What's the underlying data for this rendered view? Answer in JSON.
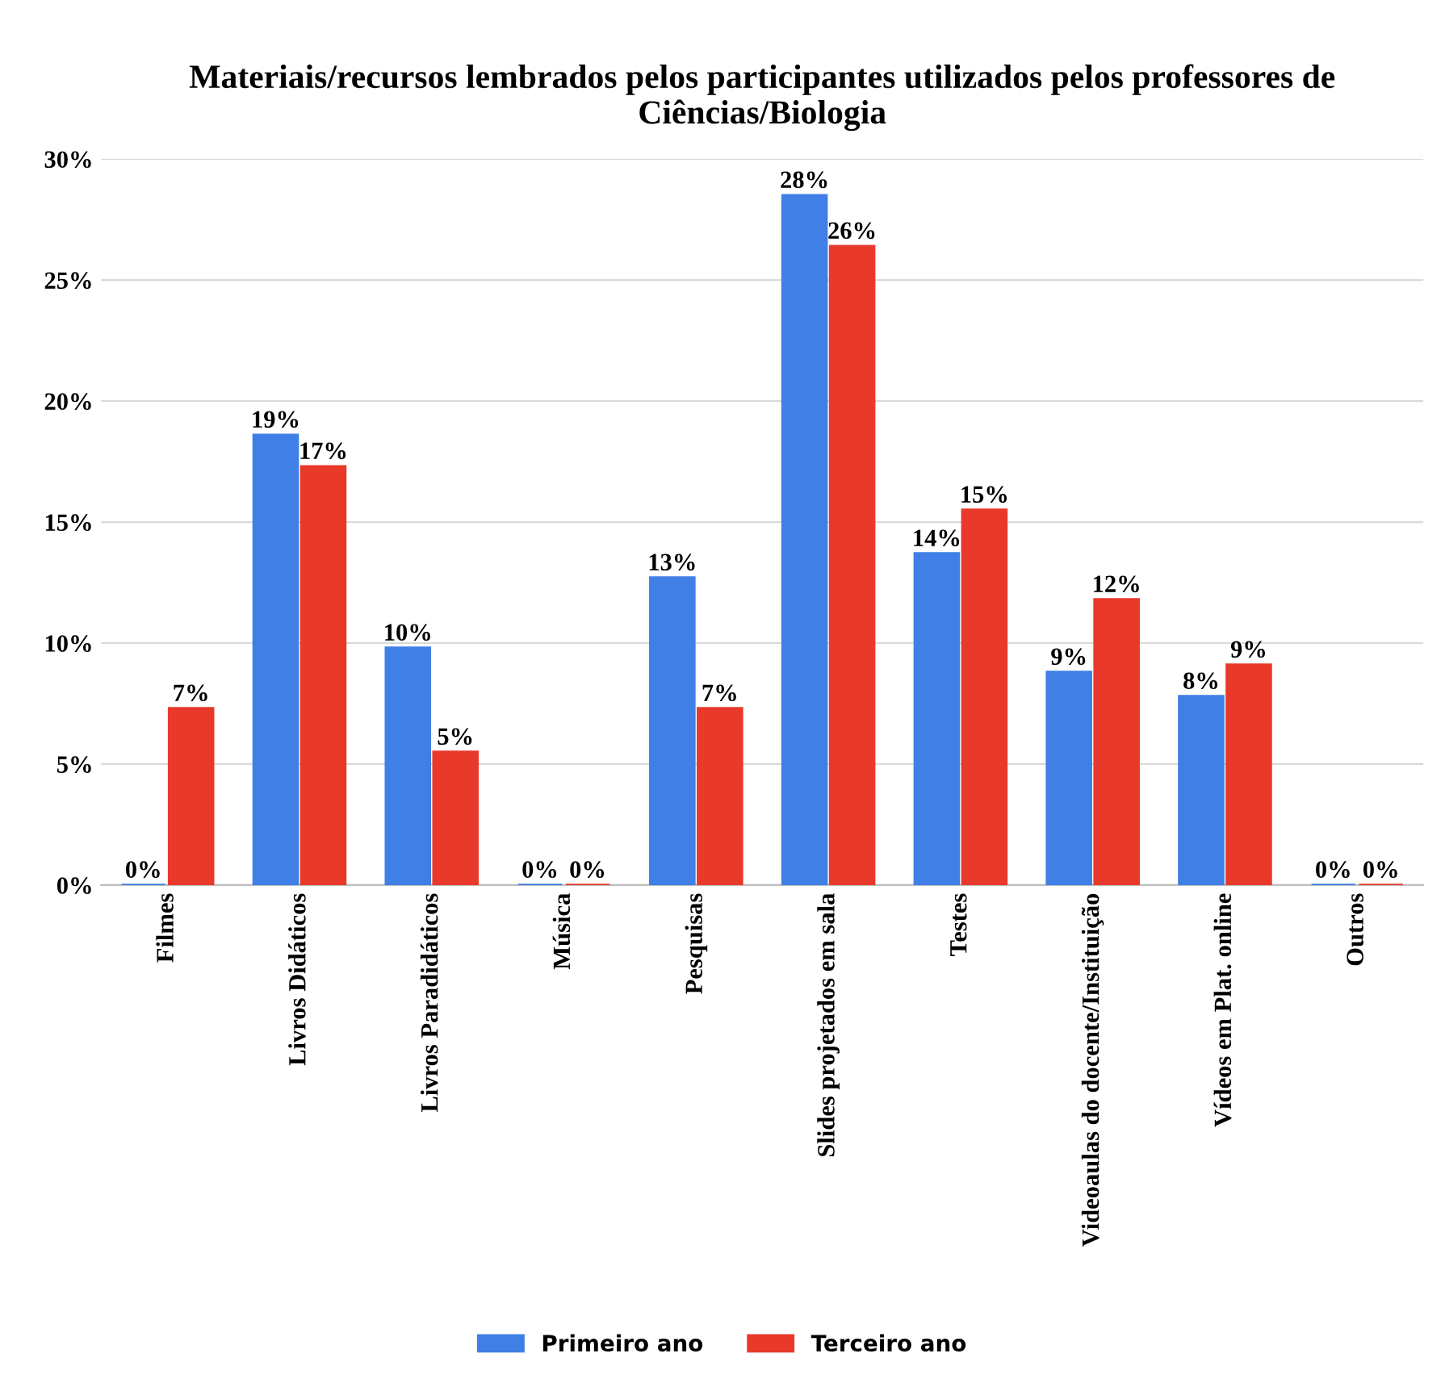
{
  "chart_data": {
    "type": "bar",
    "title": "Materiais/recursos lembrados pelos participantes utilizados pelos professores de Ciências/Biologia",
    "categories": [
      "Filmes",
      "Livros Didáticos",
      "Livros Paradidáticos",
      "Música",
      "Pesquisas",
      "Slides projetados em sala",
      "Testes",
      "Videoaulas do docente/Instituição",
      "Vídeos em Plat. online",
      "Outros"
    ],
    "series": [
      {
        "name": "Primeiro ano",
        "color": "#3f7fe6",
        "values": [
          0,
          18.6,
          9.8,
          0,
          12.7,
          28.5,
          13.7,
          8.8,
          7.8,
          0
        ],
        "value_labels": [
          "0%",
          "19%",
          "10%",
          "0%",
          "13%",
          "28%",
          "14%",
          "9%",
          "8%",
          "0%"
        ]
      },
      {
        "name": "Terceiro ano",
        "color": "#e8392b",
        "values": [
          7.3,
          17.3,
          5.5,
          0,
          7.3,
          26.4,
          15.5,
          11.8,
          9.1,
          0
        ],
        "value_labels": [
          "7%",
          "17%",
          "5%",
          "0%",
          "7%",
          "26%",
          "15%",
          "12%",
          "9%",
          "0%"
        ]
      }
    ],
    "ylim": [
      0,
      30
    ],
    "yticks": [
      {
        "value": 0,
        "label": "0%"
      },
      {
        "value": 5,
        "label": "5%"
      },
      {
        "value": 10,
        "label": "10%"
      },
      {
        "value": 15,
        "label": "15%"
      },
      {
        "value": 20,
        "label": "20%"
      },
      {
        "value": 25,
        "label": "25%"
      },
      {
        "value": 30,
        "label": "30%"
      }
    ],
    "grid": "y",
    "legend": "bottom"
  }
}
